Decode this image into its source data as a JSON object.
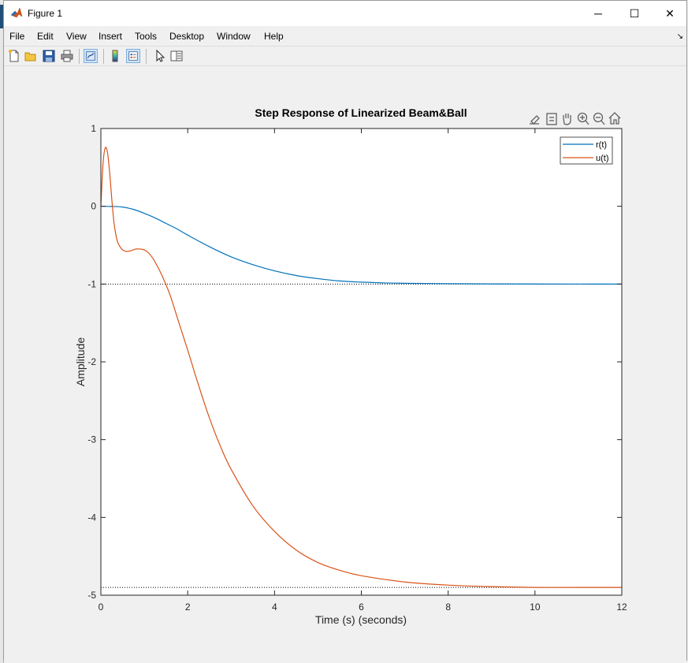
{
  "window": {
    "title": "Figure 1",
    "controls": {
      "minimize": "─",
      "maximize": "☐",
      "close": "✕"
    }
  },
  "menu": {
    "items": [
      "File",
      "Edit",
      "View",
      "Insert",
      "Tools",
      "Desktop",
      "Window",
      "Help"
    ],
    "more": "↘"
  },
  "toolbar": {
    "icons": [
      "new-figure-icon",
      "open-file-icon",
      "save-icon",
      "print-icon",
      "link-plot-icon",
      "colorbar-icon",
      "legend-icon",
      "edit-plot-icon",
      "property-inspector-icon"
    ]
  },
  "axes_toolbar": {
    "icons": [
      "brush-icon",
      "data-tips-icon",
      "pan-icon",
      "zoom-in-icon",
      "zoom-out-icon",
      "home-icon"
    ]
  },
  "colors": {
    "series_r": "#0072BD",
    "series_u": "#D95319",
    "titlebar": "#ffffff",
    "figure_bg": "#f0f0f0"
  },
  "chart_data": {
    "type": "line",
    "title": "Step Response of Linearized Beam&Ball",
    "xlabel": "Time (s) (seconds)",
    "ylabel": "Amplitude",
    "xlim": [
      0,
      12
    ],
    "ylim": [
      -5,
      1
    ],
    "xticks": [
      0,
      2,
      4,
      6,
      8,
      10,
      12
    ],
    "yticks": [
      -5,
      -4,
      -3,
      -2,
      -1,
      0,
      1
    ],
    "legend": {
      "position": "top-right",
      "entries": [
        "r(t)",
        "u(t)"
      ]
    },
    "reference_lines": [
      {
        "name": "r-final",
        "y": -1
      },
      {
        "name": "u-final",
        "y": -4.9
      }
    ],
    "series": [
      {
        "name": "r(t)",
        "x": [
          0,
          0.25,
          0.5,
          0.75,
          1,
          1.25,
          1.5,
          1.75,
          2,
          2.5,
          3,
          3.5,
          4,
          4.5,
          5,
          5.5,
          6,
          6.5,
          7,
          8,
          9,
          10,
          11,
          12
        ],
        "y": [
          0,
          -0.002,
          -0.01,
          -0.04,
          -0.09,
          -0.15,
          -0.22,
          -0.29,
          -0.37,
          -0.52,
          -0.65,
          -0.75,
          -0.83,
          -0.89,
          -0.93,
          -0.96,
          -0.975,
          -0.985,
          -0.99,
          -0.995,
          -0.998,
          -0.999,
          -1,
          -1
        ]
      },
      {
        "name": "u(t)",
        "x": [
          0,
          0.05,
          0.1,
          0.15,
          0.2,
          0.25,
          0.3,
          0.35,
          0.4,
          0.5,
          0.6,
          0.7,
          0.8,
          0.9,
          1,
          1.1,
          1.2,
          1.3,
          1.4,
          1.5,
          1.6,
          1.8,
          2,
          2.25,
          2.5,
          2.75,
          3,
          3.5,
          4,
          4.5,
          5,
          5.5,
          6,
          7,
          8,
          9,
          10,
          11,
          12
        ],
        "y": [
          0,
          0.55,
          0.75,
          0.7,
          0.45,
          0.1,
          -0.2,
          -0.38,
          -0.48,
          -0.56,
          -0.58,
          -0.57,
          -0.55,
          -0.55,
          -0.56,
          -0.6,
          -0.67,
          -0.77,
          -0.88,
          -1.01,
          -1.15,
          -1.5,
          -1.85,
          -2.3,
          -2.72,
          -3.08,
          -3.38,
          -3.85,
          -4.18,
          -4.42,
          -4.58,
          -4.68,
          -4.75,
          -4.83,
          -4.87,
          -4.89,
          -4.9,
          -4.9,
          -4.9
        ]
      }
    ]
  }
}
